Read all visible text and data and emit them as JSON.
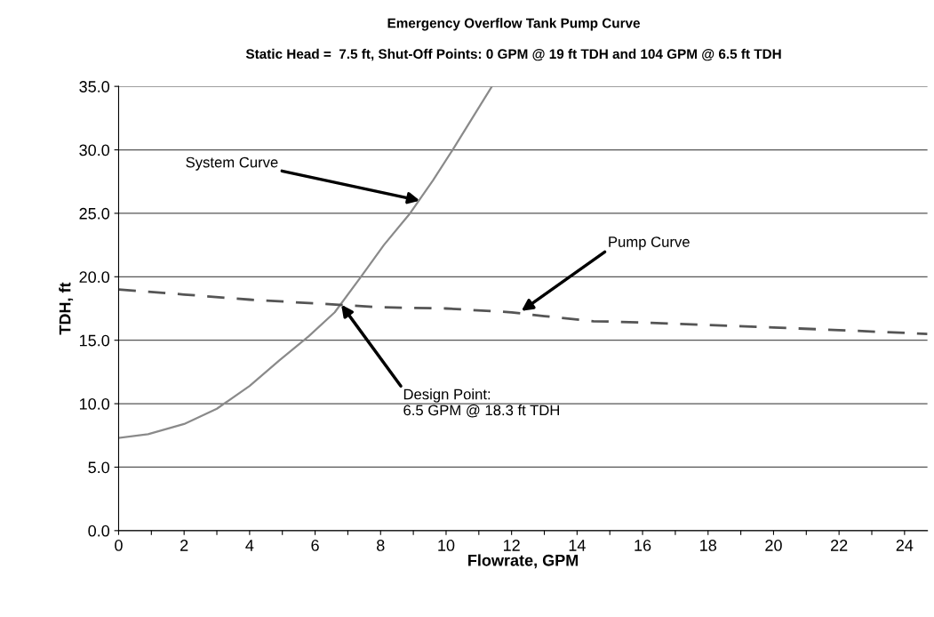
{
  "chart_data": {
    "type": "line",
    "title": "Emergency Overflow Tank Pump Curve",
    "subtitle": "Static Head =  7.5 ft, Shut-Off Points: 0 GPM @ 19 ft TDH and 104 GPM @ 6.5 ft TDH",
    "xlabel": "Flowrate, GPM",
    "ylabel": "TDH, ft",
    "series": [
      {
        "color": "#8a8a8a",
        "line_style": "solid",
        "x": [
          0,
          0.9,
          2,
          3,
          4,
          4.9,
          5.8,
          6.6,
          7.4,
          8.1,
          8.9,
          9.6,
          10.2,
          10.8,
          11.4
        ],
        "values": [
          7.3,
          7.6,
          8.4,
          9.6,
          11.4,
          13.4,
          15.3,
          17.2,
          20.0,
          22.5,
          25.0,
          27.6,
          30.0,
          32.5,
          35.0
        ]
      },
      {
        "color": "#555555",
        "line_style": "dashed",
        "x": [
          0,
          2,
          4,
          6,
          8,
          10,
          12,
          13,
          14.5,
          16,
          18,
          20,
          22,
          24.7
        ],
        "values": [
          19.0,
          18.6,
          18.2,
          17.9,
          17.6,
          17.5,
          17.2,
          16.9,
          16.5,
          16.4,
          16.2,
          16.0,
          15.8,
          15.5
        ]
      }
    ],
    "xlim": [
      0,
      24.7
    ],
    "ylim": [
      0,
      35
    ],
    "xticks": [
      0,
      {
        "value": 1,
        "label": null
      },
      2,
      {
        "value": 3,
        "label": null
      },
      4,
      {
        "value": 5,
        "label": null
      },
      6,
      {
        "value": 7,
        "label": null
      },
      8,
      {
        "value": 9,
        "label": null
      },
      10,
      {
        "value": 11,
        "label": null
      },
      12,
      {
        "value": 13,
        "label": null
      },
      14,
      {
        "value": 15,
        "label": null
      },
      16,
      {
        "value": 17,
        "label": null
      },
      18,
      {
        "value": 19,
        "label": null
      },
      20,
      {
        "value": 21,
        "label": null
      },
      22,
      {
        "value": 23,
        "label": null
      },
      24
    ],
    "yticks": [
      {
        "value": 0,
        "label": "0.0"
      },
      {
        "value": 5,
        "label": "5.0"
      },
      {
        "value": 10,
        "label": "10.0"
      },
      {
        "value": 15,
        "label": "15.0"
      },
      {
        "value": 20,
        "label": "20.0"
      },
      {
        "value": 25,
        "label": "25.0"
      },
      {
        "value": 30,
        "label": "30.0"
      },
      {
        "value": 35,
        "label": "35.0"
      }
    ],
    "grid": "y",
    "marker": "none",
    "legend": false,
    "annotations": [
      {
        "text": "System Curve",
        "x": 9.2,
        "y": 26.0
      },
      {
        "text": "Pump Curve",
        "x": 12.3,
        "y": 17.3
      },
      {
        "text": "Design Point:\n6.5 GPM @ 18.3 ft TDH",
        "x": 6.8,
        "y": 17.8
      }
    ]
  }
}
